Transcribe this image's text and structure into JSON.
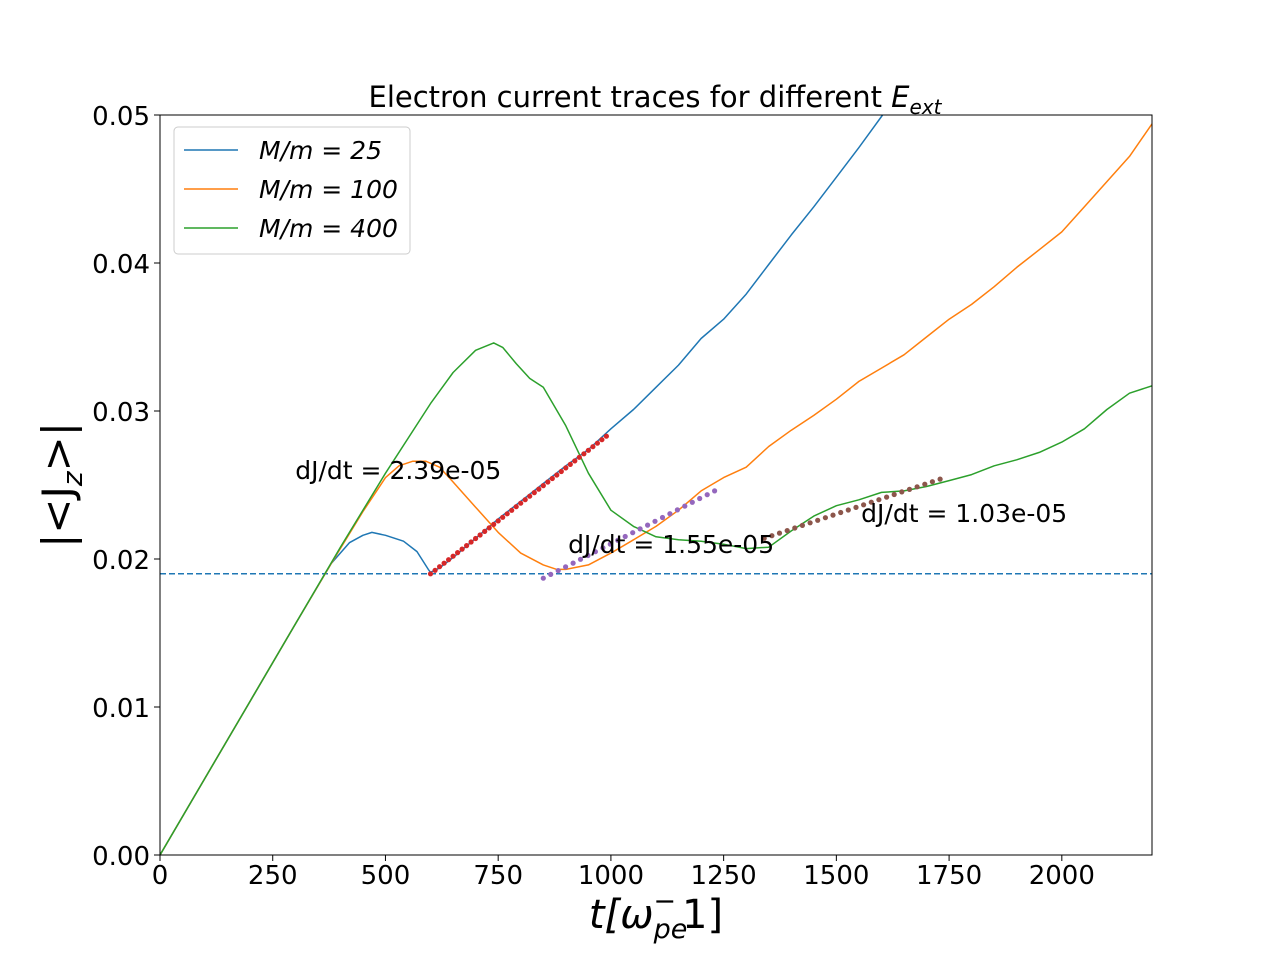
{
  "chart_data": {
    "type": "line",
    "title": "Electron current traces for different ",
    "title_math": "E",
    "title_math_sub": "ext",
    "xlabel": "t[ω",
    "xlabel_sub": "pe",
    "xlabel_sup": "−",
    "xlabel_tail": "1]",
    "ylabel": "|<J",
    "ylabel_sub": "z",
    "ylabel_tail": ">|",
    "xlim": [
      0,
      2200
    ],
    "ylim": [
      0,
      0.05
    ],
    "x_ticks": [
      0,
      250,
      500,
      750,
      1000,
      1250,
      1500,
      1750,
      2000
    ],
    "x_tick_labels": [
      "0",
      "250",
      "500",
      "750",
      "1000",
      "1250",
      "1500",
      "1750",
      "2000"
    ],
    "y_ticks": [
      0,
      0.01,
      0.02,
      0.03,
      0.04,
      0.05
    ],
    "y_tick_labels": [
      "0.00",
      "0.01",
      "0.02",
      "0.03",
      "0.04",
      "0.05"
    ],
    "grid": false,
    "legend_position": "top-left",
    "series": [
      {
        "name": "M/m = 25",
        "color": "#1f77b4",
        "x": [
          0,
          100,
          200,
          300,
          380,
          420,
          450,
          470,
          500,
          540,
          570,
          595,
          600,
          620,
          650,
          700,
          750,
          800,
          850,
          900,
          950,
          1000,
          1050,
          1100,
          1150,
          1200,
          1250,
          1300,
          1350,
          1400,
          1450,
          1500,
          1550,
          1600,
          1630
        ],
        "y": [
          0,
          0.0052,
          0.0104,
          0.0156,
          0.0197,
          0.0211,
          0.0216,
          0.0218,
          0.0216,
          0.0212,
          0.0205,
          0.0193,
          0.0191,
          0.0194,
          0.0201,
          0.0214,
          0.0227,
          0.0239,
          0.0251,
          0.0263,
          0.0274,
          0.0288,
          0.0301,
          0.0316,
          0.0331,
          0.0349,
          0.0362,
          0.0379,
          0.0399,
          0.0419,
          0.0438,
          0.0458,
          0.0478,
          0.0499,
          0.0512
        ]
      },
      {
        "name": "M/m = 100",
        "color": "#ff7f0e",
        "x": [
          0,
          100,
          200,
          300,
          380,
          450,
          500,
          530,
          560,
          590,
          620,
          650,
          700,
          750,
          800,
          850,
          880,
          900,
          950,
          1000,
          1050,
          1100,
          1150,
          1200,
          1250,
          1300,
          1350,
          1400,
          1450,
          1500,
          1550,
          1600,
          1650,
          1700,
          1750,
          1800,
          1850,
          1900,
          1950,
          2000,
          2050,
          2100,
          2150,
          2200
        ],
        "y": [
          0,
          0.0052,
          0.0104,
          0.0156,
          0.0197,
          0.0232,
          0.0255,
          0.0263,
          0.0266,
          0.0266,
          0.0262,
          0.0252,
          0.0235,
          0.0218,
          0.0204,
          0.0196,
          0.0193,
          0.0193,
          0.0196,
          0.0204,
          0.0213,
          0.0222,
          0.0233,
          0.0246,
          0.0255,
          0.0262,
          0.0276,
          0.0287,
          0.0297,
          0.0308,
          0.032,
          0.0329,
          0.0338,
          0.035,
          0.0362,
          0.0372,
          0.0384,
          0.0397,
          0.0409,
          0.0421,
          0.0438,
          0.0455,
          0.0472,
          0.0494
        ]
      },
      {
        "name": "M/m = 400",
        "color": "#2ca02c",
        "x": [
          0,
          100,
          200,
          300,
          400,
          500,
          600,
          650,
          700,
          740,
          760,
          790,
          820,
          850,
          900,
          950,
          1000,
          1050,
          1100,
          1150,
          1200,
          1250,
          1300,
          1350,
          1400,
          1450,
          1500,
          1550,
          1600,
          1650,
          1700,
          1750,
          1800,
          1850,
          1900,
          1950,
          2000,
          2050,
          2100,
          2150,
          2200
        ],
        "y": [
          0,
          0.0052,
          0.0104,
          0.0156,
          0.0208,
          0.0258,
          0.0305,
          0.0326,
          0.0341,
          0.0346,
          0.0343,
          0.0332,
          0.0322,
          0.0316,
          0.029,
          0.0258,
          0.0233,
          0.0222,
          0.0215,
          0.0213,
          0.0212,
          0.021,
          0.0207,
          0.0208,
          0.0219,
          0.0229,
          0.0236,
          0.024,
          0.0245,
          0.0246,
          0.0249,
          0.0253,
          0.0257,
          0.0263,
          0.0267,
          0.0272,
          0.0279,
          0.0288,
          0.0301,
          0.0312,
          0.0317
        ]
      }
    ],
    "reference_line": {
      "y": 0.019,
      "color": "#1f77b4",
      "style": "dashed"
    },
    "fits": [
      {
        "color": "#d62728",
        "x_start": 600,
        "x_end": 990,
        "y_start": 0.019,
        "y_end": 0.0283,
        "n_points": 40,
        "label": "dJ/dt = 2.39e-05",
        "label_x": 300,
        "label_y": 0.0254
      },
      {
        "color": "#9467bd",
        "x_start": 850,
        "x_end": 1230,
        "y_start": 0.0187,
        "y_end": 0.0246,
        "n_points": 24,
        "label": "dJ/dt = 1.55e-05",
        "label_x": 905,
        "label_y": 0.0204
      },
      {
        "color": "#8c564b",
        "x_start": 1340,
        "x_end": 1730,
        "y_start": 0.0214,
        "y_end": 0.0254,
        "n_points": 24,
        "label": "dJ/dt = 1.03e-05",
        "label_x": 1555,
        "label_y": 0.0225
      }
    ]
  }
}
